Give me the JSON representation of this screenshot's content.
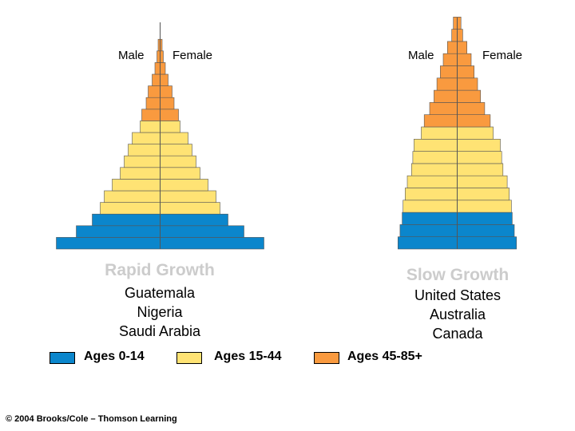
{
  "colors": {
    "ages_0_14": "#0b86cc",
    "ages_15_44": "#ffe374",
    "ages_45_85": "#f99a3f",
    "outline": "#555555",
    "title": "#cccccc"
  },
  "legend": [
    {
      "label": "Ages 0-14",
      "color": "#0b86cc"
    },
    {
      "label": "Ages 15-44",
      "color": "#ffe374"
    },
    {
      "label": "Ages 45-85+",
      "color": "#f99a3f"
    }
  ],
  "copyright": "© 2004 Brooks/Cole – Thomson Learning",
  "chart_data": [
    {
      "type": "bar",
      "orientation": "population-pyramid",
      "title": "Rapid Growth",
      "male_label": "Male",
      "female_label": "Female",
      "countries": [
        "Guatemala",
        "Nigeria",
        "Saudi Arabia"
      ],
      "bands_bottom_to_top": [
        {
          "group": "Ages 0-14",
          "half_widths": [
            26,
            21,
            17
          ]
        },
        {
          "group": "Ages 15-44",
          "half_widths": [
            15,
            14,
            12,
            10,
            9,
            8,
            7,
            5
          ]
        },
        {
          "group": "Ages 45-85+",
          "half_widths": [
            4.6,
            3.5,
            3.0,
            2.0,
            1.3,
            0.8,
            0.5
          ]
        }
      ]
    },
    {
      "type": "bar",
      "orientation": "population-pyramid",
      "title": "Slow Growth",
      "male_label": "Male",
      "female_label": "Female",
      "countries": [
        "United States",
        "Australia",
        "Canada"
      ],
      "bands_bottom_to_top": [
        {
          "group": "Ages 0-14",
          "half_widths": [
            14,
            13.5,
            13
          ]
        },
        {
          "group": "Ages 15-44",
          "half_widths": [
            12.8,
            12.3,
            11.8,
            10.8,
            10.5,
            10.2,
            8.5
          ]
        },
        {
          "group": "Ages 45-85+",
          "half_widths": [
            7.8,
            6.5,
            5.5,
            4.8,
            4.0,
            3.3,
            2.3,
            1.3,
            0.9
          ]
        }
      ]
    }
  ]
}
